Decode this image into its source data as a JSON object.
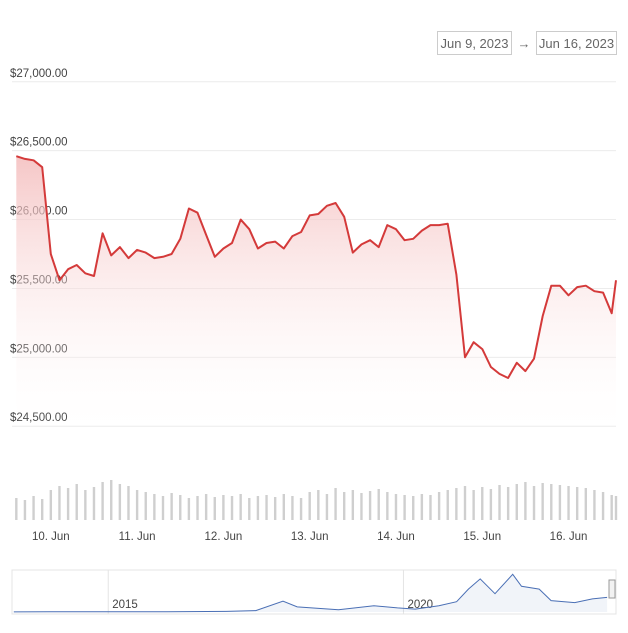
{
  "date_range": {
    "from": "Jun 9, 2023",
    "separator": "→",
    "to": "Jun 16, 2023"
  },
  "chart_data": [
    {
      "type": "area",
      "color": "#d43a3a",
      "grid": true,
      "x": [
        9.6,
        9.7,
        9.8,
        9.9,
        10.0,
        10.1,
        10.2,
        10.3,
        10.4,
        10.5,
        10.6,
        10.7,
        10.8,
        10.9,
        11.0,
        11.1,
        11.2,
        11.3,
        11.4,
        11.5,
        11.6,
        11.7,
        11.8,
        11.9,
        12.0,
        12.1,
        12.2,
        12.3,
        12.4,
        12.5,
        12.6,
        12.7,
        12.8,
        12.9,
        13.0,
        13.1,
        13.2,
        13.3,
        13.4,
        13.5,
        13.6,
        13.7,
        13.8,
        13.9,
        14.0,
        14.1,
        14.2,
        14.3,
        14.4,
        14.5,
        14.6,
        14.7,
        14.8,
        14.9,
        15.0,
        15.1,
        15.2,
        15.3,
        15.4,
        15.5,
        15.6,
        15.7,
        15.8,
        15.9,
        16.0,
        16.1,
        16.2,
        16.3,
        16.4,
        16.5,
        16.55
      ],
      "values": [
        26460,
        26440,
        26430,
        26380,
        25750,
        25560,
        25640,
        25670,
        25610,
        25590,
        25900,
        25740,
        25800,
        25720,
        25780,
        25760,
        25720,
        25730,
        25750,
        25860,
        26080,
        26050,
        25890,
        25730,
        25790,
        25830,
        26000,
        25930,
        25790,
        25830,
        25840,
        25790,
        25880,
        25910,
        26030,
        26040,
        26100,
        26120,
        26020,
        25760,
        25820,
        25850,
        25800,
        25960,
        25930,
        25850,
        25860,
        25920,
        25960,
        25960,
        25970,
        25600,
        25000,
        25110,
        25060,
        24930,
        24880,
        24850,
        24960,
        24900,
        24990,
        25300,
        25520,
        25520,
        25450,
        25510,
        25520,
        25480,
        25470,
        25320,
        25560
      ],
      "xlim": [
        9.55,
        16.55
      ],
      "xticks": [
        {
          "value": 10,
          "label": "10. Jun"
        },
        {
          "value": 11,
          "label": "11. Jun"
        },
        {
          "value": 12,
          "label": "12. Jun"
        },
        {
          "value": 13,
          "label": "13. Jun"
        },
        {
          "value": 14,
          "label": "14. Jun"
        },
        {
          "value": 15,
          "label": "15. Jun"
        },
        {
          "value": 16,
          "label": "16. Jun"
        }
      ],
      "ylim": [
        24400,
        27100
      ],
      "yticks": [
        {
          "value": 24500,
          "label": "$24,500.00"
        },
        {
          "value": 25000,
          "label": "$25,000.00"
        },
        {
          "value": 25500,
          "label": "$25,500.00"
        },
        {
          "value": 26000,
          "label": "$26,000.00"
        },
        {
          "value": 26500,
          "label": "$26,500.00"
        },
        {
          "value": 27000,
          "label": "$27,000.00"
        }
      ]
    },
    {
      "type": "bar",
      "color": "#cfcfcf",
      "x": [
        9.6,
        9.7,
        9.8,
        9.9,
        10.0,
        10.1,
        10.2,
        10.3,
        10.4,
        10.5,
        10.6,
        10.7,
        10.8,
        10.9,
        11.0,
        11.1,
        11.2,
        11.3,
        11.4,
        11.5,
        11.6,
        11.7,
        11.8,
        11.9,
        12.0,
        12.1,
        12.2,
        12.3,
        12.4,
        12.5,
        12.6,
        12.7,
        12.8,
        12.9,
        13.0,
        13.1,
        13.2,
        13.3,
        13.4,
        13.5,
        13.6,
        13.7,
        13.8,
        13.9,
        14.0,
        14.1,
        14.2,
        14.3,
        14.4,
        14.5,
        14.6,
        14.7,
        14.8,
        14.9,
        15.0,
        15.1,
        15.2,
        15.3,
        15.4,
        15.5,
        15.6,
        15.7,
        15.8,
        15.9,
        16.0,
        16.1,
        16.2,
        16.3,
        16.4,
        16.5,
        16.55
      ],
      "values": [
        22,
        20,
        24,
        21,
        30,
        34,
        32,
        36,
        30,
        33,
        38,
        40,
        36,
        34,
        30,
        28,
        26,
        24,
        27,
        25,
        22,
        24,
        26,
        23,
        25,
        24,
        26,
        22,
        24,
        25,
        23,
        26,
        24,
        22,
        28,
        30,
        26,
        32,
        28,
        30,
        27,
        29,
        31,
        28,
        26,
        25,
        24,
        26,
        25,
        28,
        30,
        32,
        34,
        30,
        33,
        31,
        35,
        33,
        36,
        38,
        34,
        37,
        36,
        35,
        34,
        33,
        32,
        30,
        28,
        25,
        24
      ],
      "xlim": [
        9.55,
        16.55
      ],
      "ylim": [
        0,
        50
      ]
    },
    {
      "type": "line",
      "color": "#4a6fb5",
      "x": [
        2013.4,
        2014.0,
        2015.0,
        2016.0,
        2017.0,
        2017.5,
        2017.96,
        2018.2,
        2018.9,
        2019.5,
        2019.9,
        2020.2,
        2020.6,
        2020.9,
        2021.1,
        2021.3,
        2021.55,
        2021.85,
        2022.0,
        2022.3,
        2022.5,
        2022.9,
        2023.2,
        2023.45
      ],
      "values": [
        100,
        600,
        300,
        400,
        1000,
        2500,
        19000,
        9000,
        3800,
        11000,
        7200,
        5000,
        11000,
        18000,
        40000,
        58000,
        32000,
        66000,
        45000,
        40000,
        20000,
        16500,
        23000,
        25500
      ],
      "xlim": [
        2013.37,
        2023.6
      ],
      "xticks": [
        2015,
        2020
      ],
      "ylim": [
        0,
        70000
      ]
    }
  ]
}
